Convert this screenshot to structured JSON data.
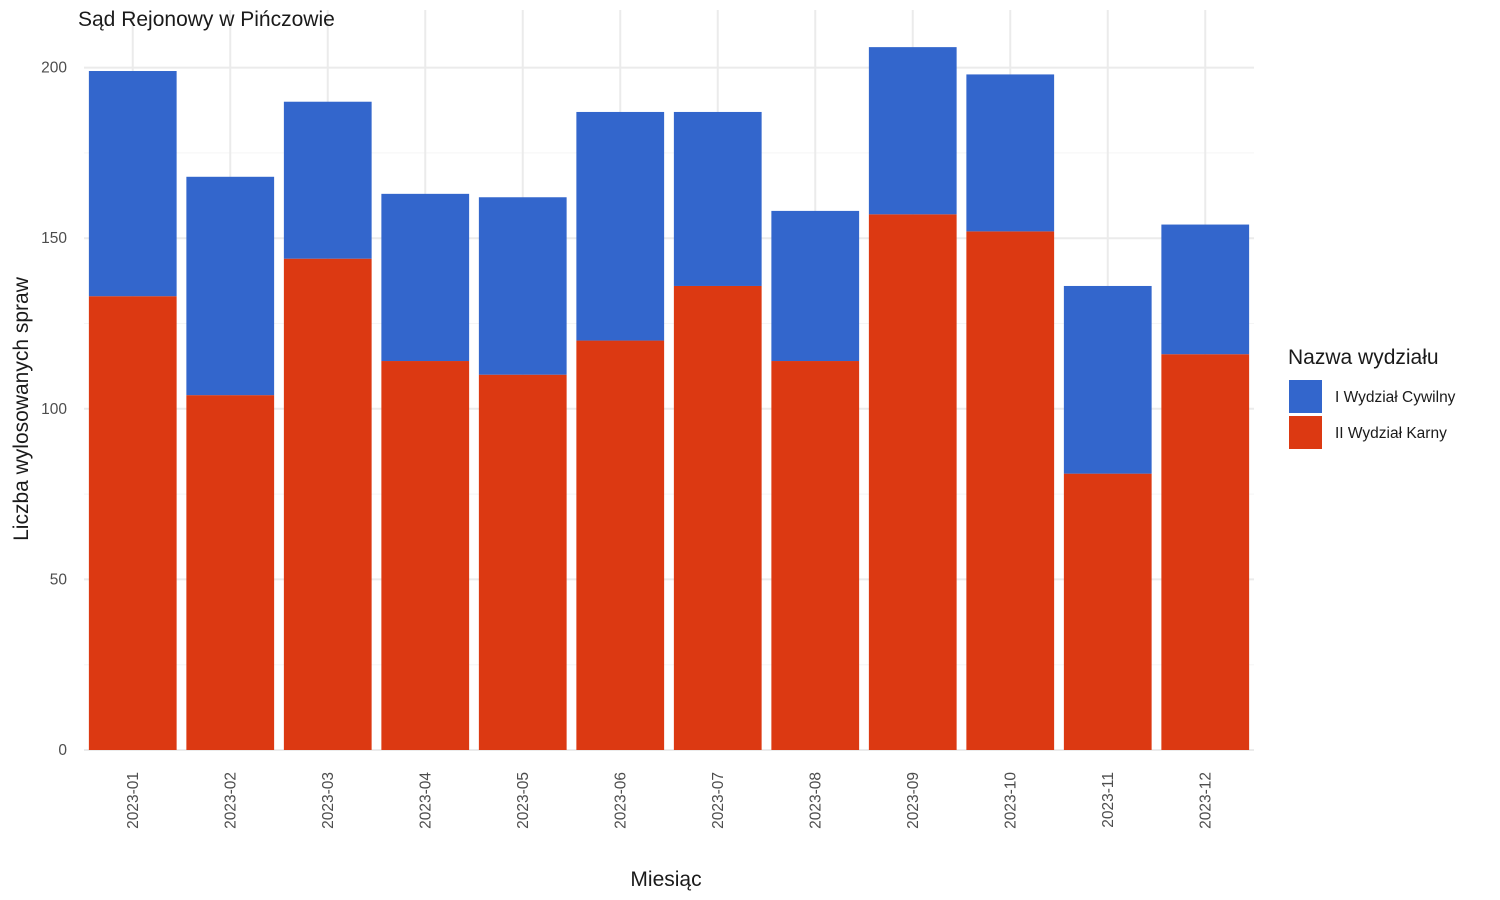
{
  "chart_data": {
    "type": "bar",
    "stacked": true,
    "title": "Sąd Rejonowy w Pińczowie",
    "xlabel": "Miesiąc",
    "ylabel": "Liczba wylosowanych spraw",
    "ylim": [
      0,
      210
    ],
    "yticks": [
      0,
      50,
      100,
      150,
      200
    ],
    "grid": true,
    "legend": {
      "title": "Nazwa wydziału",
      "position": "right"
    },
    "categories": [
      "2023-01",
      "2023-02",
      "2023-03",
      "2023-04",
      "2023-05",
      "2023-06",
      "2023-07",
      "2023-08",
      "2023-09",
      "2023-10",
      "2023-11",
      "2023-12"
    ],
    "series": [
      {
        "name": "I Wydział Cywilny",
        "color": "#3366cc",
        "values": [
          66,
          64,
          46,
          49,
          52,
          67,
          51,
          44,
          49,
          46,
          55,
          38
        ]
      },
      {
        "name": "II Wydział Karny",
        "color": "#dc3912",
        "values": [
          133,
          104,
          144,
          114,
          110,
          120,
          136,
          114,
          157,
          152,
          81,
          116
        ]
      }
    ]
  }
}
